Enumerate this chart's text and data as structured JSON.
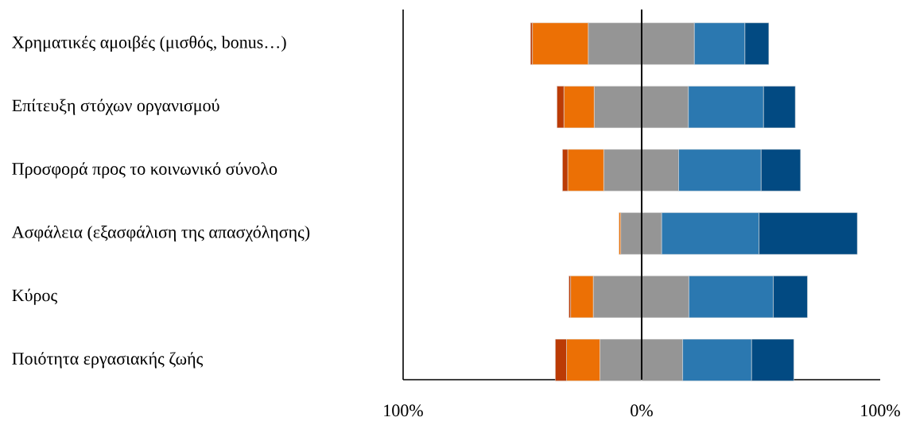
{
  "chart_data": {
    "type": "bar",
    "orientation": "horizontal",
    "stacked": true,
    "categories": [
      "Χρηματικές αμοιβές (μισθός, bonus…)",
      "Επίτευξη στόχων οργανισμού",
      "Προσφορά προς το κοινωνικό σύνολο",
      "Ασφάλεια (εξασφάλιση της απασχόλησης)",
      "Κύρος",
      "Ποιότητα εργασιακής ζωής"
    ],
    "series": [
      {
        "color": "#959595",
        "values": [
          -22.4,
          -19.9,
          -15.9,
          -8.8,
          -20.3,
          -17.5
        ]
      },
      {
        "color": "#ec7005",
        "values": [
          -23.4,
          -12.7,
          -15.1,
          -0.7,
          -9.5,
          -14.0
        ]
      },
      {
        "color": "#bb3b05",
        "values": [
          -0.8,
          -2.9,
          -2.2,
          0,
          -0.7,
          -4.7
        ]
      },
      {
        "color": "#959595",
        "values": [
          22.1,
          19.6,
          15.5,
          8.4,
          19.8,
          17.2
        ]
      },
      {
        "color": "#2b78b0",
        "values": [
          21.2,
          31.5,
          34.6,
          40.8,
          35.4,
          28.9
        ]
      },
      {
        "color": "#024a82",
        "values": [
          10.0,
          13.3,
          16.5,
          41.2,
          14.3,
          17.7
        ]
      }
    ],
    "xlim": [
      -100,
      100
    ],
    "xticks": [
      {
        "value": -100,
        "label": "100%"
      },
      {
        "value": 0,
        "label": "0%"
      },
      {
        "value": 100,
        "label": "100%"
      }
    ],
    "ref_lines": [
      {
        "axis": "x",
        "value": 0,
        "color": "#000000"
      }
    ]
  }
}
